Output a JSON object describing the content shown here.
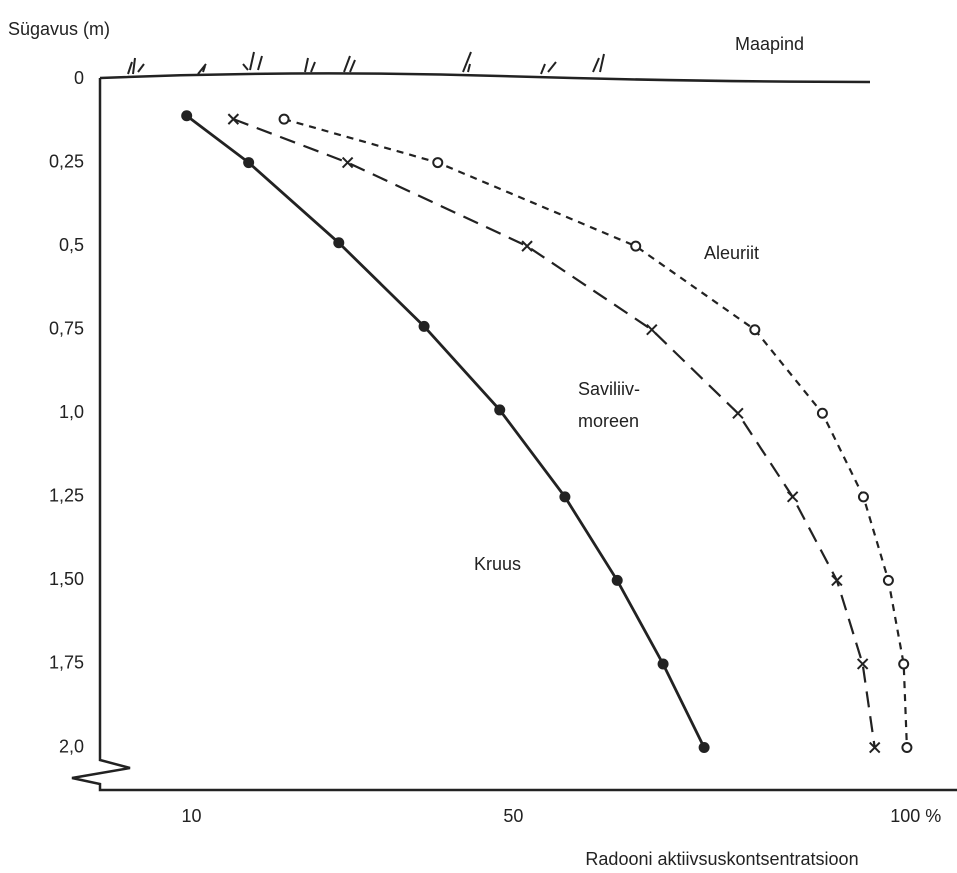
{
  "chart_data": {
    "type": "line",
    "y_label": "Sügavus (m)",
    "x_label": "Radooni aktiivsuskontsentratsioon",
    "annotation": "Maapind",
    "invert_y": true,
    "xlim": [
      -1,
      105
    ],
    "ylim": [
      0,
      2.13
    ],
    "xticks": [
      10,
      50,
      {
        "value": 100,
        "label": "100 %"
      }
    ],
    "yticks": [
      0,
      {
        "value": 0.25,
        "label": "0,25"
      },
      {
        "value": 0.5,
        "label": "0,5"
      },
      {
        "value": 0.75,
        "label": "0,75"
      },
      {
        "value": 1.0,
        "label": "1,0"
      },
      {
        "value": 1.25,
        "label": "1,25"
      },
      {
        "value": 1.5,
        "label": "1,50"
      },
      {
        "value": 1.75,
        "label": "1,75"
      },
      {
        "value": 2.0,
        "label": "2,0"
      }
    ],
    "grid": false,
    "series": [
      {
        "name": "Kruus",
        "color": "#222222",
        "marker": "filled",
        "dash": "none",
        "x": [
          9.4,
          17.1,
          28.3,
          38.9,
          48.3,
          56.4,
          62.9,
          68.6,
          73.7
        ],
        "values": [
          0.11,
          0.25,
          0.49,
          0.74,
          0.99,
          1.25,
          1.5,
          1.75,
          2.0
        ]
      },
      {
        "name": [
          "Saviliiv-",
          "moreen"
        ],
        "color": "#222222",
        "marker": "cross",
        "dash": "16 9",
        "x": [
          15.2,
          29.4,
          51.7,
          67.2,
          77.9,
          84.7,
          90.2,
          93.4,
          94.9
        ],
        "values": [
          0.12,
          0.25,
          0.5,
          0.75,
          1.0,
          1.25,
          1.5,
          1.75,
          2.0
        ]
      },
      {
        "name": "Aleuriit",
        "color": "#222222",
        "marker": "open",
        "dash": "7 6",
        "x": [
          21.5,
          40.6,
          65.2,
          80.0,
          88.4,
          93.5,
          96.6,
          98.5,
          98.9
        ],
        "values": [
          0.12,
          0.25,
          0.5,
          0.75,
          1.0,
          1.25,
          1.5,
          1.75,
          2.0
        ]
      }
    ]
  }
}
